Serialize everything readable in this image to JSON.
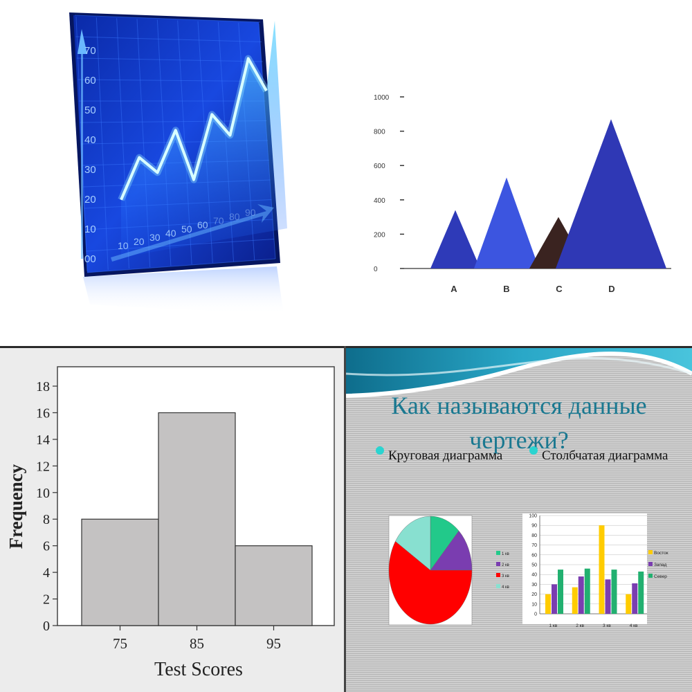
{
  "chart_data": [
    {
      "type": "line",
      "y_ticks": [
        "70",
        "60",
        "50",
        "40",
        "30",
        "20",
        "10",
        "00"
      ],
      "x_ticks": [
        "10",
        "20",
        "30",
        "40",
        "50",
        "60",
        "70",
        "80",
        "90"
      ],
      "x": [
        10,
        20,
        30,
        40,
        50,
        60,
        70,
        80,
        90
      ],
      "y": [
        16,
        30,
        24,
        38,
        20,
        42,
        34,
        60,
        48
      ],
      "colors": {
        "screen": "#1030c8",
        "line": "#38c8ff"
      }
    },
    {
      "type": "area",
      "categories": [
        "A",
        "B",
        "C",
        "D"
      ],
      "values": [
        340,
        530,
        300,
        870
      ],
      "y_ticks": [
        "1000",
        "800",
        "600",
        "400",
        "200",
        "0"
      ],
      "ylim": [
        0,
        1000
      ],
      "colors": [
        "#2e3ab8",
        "#3c55e0",
        "#3a2320",
        "#2f38b5"
      ]
    },
    {
      "type": "bar",
      "title": "",
      "xlabel": "Test Scores",
      "ylabel": "Frequency",
      "categories": [
        "75",
        "85",
        "95"
      ],
      "values": [
        8,
        16,
        6
      ],
      "ylim": [
        0,
        18
      ],
      "y_ticks": [
        "0",
        "2",
        "4",
        "6",
        "8",
        "10",
        "12",
        "14",
        "16",
        "18"
      ],
      "colors": {
        "bar": "#c4c2c2"
      }
    },
    {
      "type": "pie",
      "title": "Как называются данные чертежи?",
      "bullets": [
        "Круговая  диаграмма",
        "Столбчатая  диаграмма"
      ],
      "slices": [
        {
          "name": "1 кв",
          "value": 12,
          "color": "#22c98a"
        },
        {
          "name": "2 кв",
          "value": 13,
          "color": "#7a3db0"
        },
        {
          "name": "3 кв",
          "value": 59,
          "color": "#ff0000"
        },
        {
          "name": "4 кв",
          "value": 16,
          "color": "#88e0d0"
        }
      ]
    },
    {
      "type": "bar",
      "categories": [
        "1 кв",
        "2 кв",
        "3 кв",
        "4 кв"
      ],
      "series": [
        {
          "name": "Восток",
          "values": [
            20,
            27,
            90,
            20
          ],
          "color": "#ffcc00"
        },
        {
          "name": "Запад",
          "values": [
            30,
            38,
            35,
            31
          ],
          "color": "#7a3db0"
        },
        {
          "name": "Север",
          "values": [
            45,
            46,
            45,
            43
          ],
          "color": "#22b070"
        }
      ],
      "ylim": [
        0,
        100
      ],
      "y_ticks": [
        "0",
        "10",
        "20",
        "30",
        "40",
        "50",
        "60",
        "70",
        "80",
        "90",
        "100"
      ]
    }
  ]
}
